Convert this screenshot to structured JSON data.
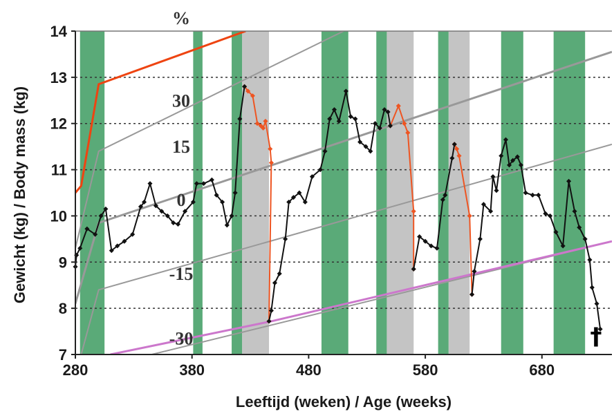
{
  "chart_data": {
    "type": "line",
    "xlabel": "Leeftijd (weken)  /  Age (weeks)",
    "ylabel": "Gewicht (kg)  /  Body mass (kg)",
    "xlim": [
      280,
      740
    ],
    "ylim": [
      7,
      14
    ],
    "x_ticks": [
      "280",
      "380",
      "480",
      "580",
      "680"
    ],
    "y_ticks": [
      "7",
      "8",
      "9",
      "10",
      "11",
      "12",
      "13",
      "14"
    ],
    "grid": "horizontal dotted",
    "secondary_axis_unit": "%",
    "reference_labels": [
      "30",
      "15",
      "0",
      "-15",
      "-30"
    ],
    "end_marker": "†",
    "colors": {
      "green_band": "#5aaa78",
      "gray_band": "#c4c4c4",
      "body_mass": "#111111",
      "decline": "#ee5522",
      "upper_limit": "#ee4411",
      "lower_limit": "#cc77cc",
      "reference": "#999999"
    },
    "green_periods": [
      [
        284,
        305
      ],
      [
        381,
        389
      ],
      [
        414,
        423
      ],
      [
        491,
        514
      ],
      [
        538,
        547
      ],
      [
        591,
        600
      ],
      [
        645,
        664
      ],
      [
        690,
        717
      ]
    ],
    "gray_periods": [
      [
        423,
        446
      ],
      [
        547,
        570
      ],
      [
        600,
        618
      ]
    ],
    "reference_lines": [
      {
        "label": "30",
        "points": [
          [
            280,
            10.5
          ],
          [
            285,
            10.65
          ],
          [
            300,
            12.85
          ],
          [
            426,
            14.0
          ]
        ]
      },
      {
        "label": "15",
        "points": [
          [
            280,
            9.3
          ],
          [
            300,
            11.4
          ],
          [
            510,
            14.0
          ]
        ]
      },
      {
        "label": "0",
        "points": [
          [
            280,
            8.1
          ],
          [
            300,
            9.85
          ],
          [
            740,
            13.55
          ]
        ]
      },
      {
        "label": "-15",
        "points": [
          [
            285,
            7.0
          ],
          [
            300,
            8.4
          ],
          [
            740,
            11.55
          ]
        ]
      },
      {
        "label": "-30",
        "points": [
          [
            297,
            6.7
          ],
          [
            740,
            9.45
          ]
        ]
      }
    ],
    "upper_limit": [
      [
        280,
        10.5
      ],
      [
        285,
        10.65
      ],
      [
        300,
        12.85
      ],
      [
        426,
        14.0
      ]
    ],
    "lower_limit": [
      [
        310,
        7.0
      ],
      [
        448,
        7.72
      ],
      [
        740,
        9.45
      ]
    ],
    "body_mass": [
      [
        280,
        8.9
      ],
      [
        281,
        9.15
      ],
      [
        284,
        9.3
      ],
      [
        290,
        9.72
      ],
      [
        297,
        9.6
      ],
      [
        302,
        10.0
      ],
      [
        306,
        10.15
      ],
      [
        311,
        9.25
      ],
      [
        316,
        9.35
      ],
      [
        322,
        9.45
      ],
      [
        329,
        9.6
      ],
      [
        336,
        10.2
      ],
      [
        339,
        10.3
      ],
      [
        344,
        10.7
      ],
      [
        349,
        10.22
      ],
      [
        354,
        10.1
      ],
      [
        359,
        10.0
      ],
      [
        364,
        9.85
      ],
      [
        368,
        9.82
      ],
      [
        374,
        10.1
      ],
      [
        381,
        10.3
      ],
      [
        384,
        10.7
      ],
      [
        390,
        10.7
      ],
      [
        397,
        10.78
      ],
      [
        401,
        10.45
      ],
      [
        406,
        10.3
      ],
      [
        410,
        9.8
      ],
      [
        414,
        10.0
      ],
      [
        417,
        10.5
      ],
      [
        421,
        12.1
      ],
      [
        425,
        12.8
      ],
      [
        446,
        7.72
      ],
      [
        448,
        7.95
      ],
      [
        451,
        8.55
      ],
      [
        455,
        8.75
      ],
      [
        460,
        9.5
      ],
      [
        463,
        10.3
      ],
      [
        467,
        10.4
      ],
      [
        472,
        10.5
      ],
      [
        477,
        10.3
      ],
      [
        483,
        10.85
      ],
      [
        490,
        11.0
      ],
      [
        494,
        11.4
      ],
      [
        498,
        12.1
      ],
      [
        502,
        12.3
      ],
      [
        506,
        12.05
      ],
      [
        512,
        12.7
      ],
      [
        516,
        12.15
      ],
      [
        520,
        12.1
      ],
      [
        524,
        11.6
      ],
      [
        529,
        11.5
      ],
      [
        533,
        11.4
      ],
      [
        537,
        12.0
      ],
      [
        541,
        11.9
      ],
      [
        545,
        12.3
      ],
      [
        548,
        12.25
      ],
      [
        550,
        11.95
      ],
      [
        570,
        8.85
      ],
      [
        575,
        9.55
      ],
      [
        580,
        9.45
      ],
      [
        585,
        9.35
      ],
      [
        590,
        9.3
      ],
      [
        595,
        10.35
      ],
      [
        597,
        10.45
      ],
      [
        603,
        11.25
      ],
      [
        605,
        11.55
      ],
      [
        620,
        8.3
      ],
      [
        622,
        8.8
      ],
      [
        627,
        9.5
      ],
      [
        630,
        10.25
      ],
      [
        636,
        10.1
      ],
      [
        638,
        10.85
      ],
      [
        641,
        10.55
      ],
      [
        645,
        11.3
      ],
      [
        649,
        11.65
      ],
      [
        652,
        11.1
      ],
      [
        655,
        11.2
      ],
      [
        659,
        11.28
      ],
      [
        662,
        11.1
      ],
      [
        666,
        10.5
      ],
      [
        672,
        10.45
      ],
      [
        677,
        10.45
      ],
      [
        683,
        10.05
      ],
      [
        687,
        10.0
      ],
      [
        692,
        9.65
      ],
      [
        698,
        9.35
      ],
      [
        703,
        10.75
      ],
      [
        708,
        10.1
      ],
      [
        712,
        9.75
      ],
      [
        717,
        9.5
      ],
      [
        721,
        9.05
      ],
      [
        723,
        8.45
      ],
      [
        727,
        8.1
      ],
      [
        730,
        7.55
      ]
    ],
    "decline_segments": [
      [
        [
          425,
          12.8
        ],
        [
          428,
          12.7
        ],
        [
          432,
          12.6
        ],
        [
          436,
          12.0
        ],
        [
          439,
          11.95
        ],
        [
          441,
          11.9
        ],
        [
          443,
          12.05
        ],
        [
          447,
          11.45
        ],
        [
          448,
          11.15
        ],
        [
          446,
          7.72
        ]
      ],
      [
        [
          550,
          11.95
        ],
        [
          557,
          12.38
        ],
        [
          562,
          12.0
        ],
        [
          565,
          11.8
        ],
        [
          570,
          10.1
        ],
        [
          570,
          8.85
        ]
      ],
      [
        [
          605,
          11.55
        ],
        [
          607,
          11.45
        ],
        [
          609,
          11.3
        ],
        [
          618,
          10.0
        ],
        [
          620,
          8.3
        ]
      ]
    ]
  }
}
